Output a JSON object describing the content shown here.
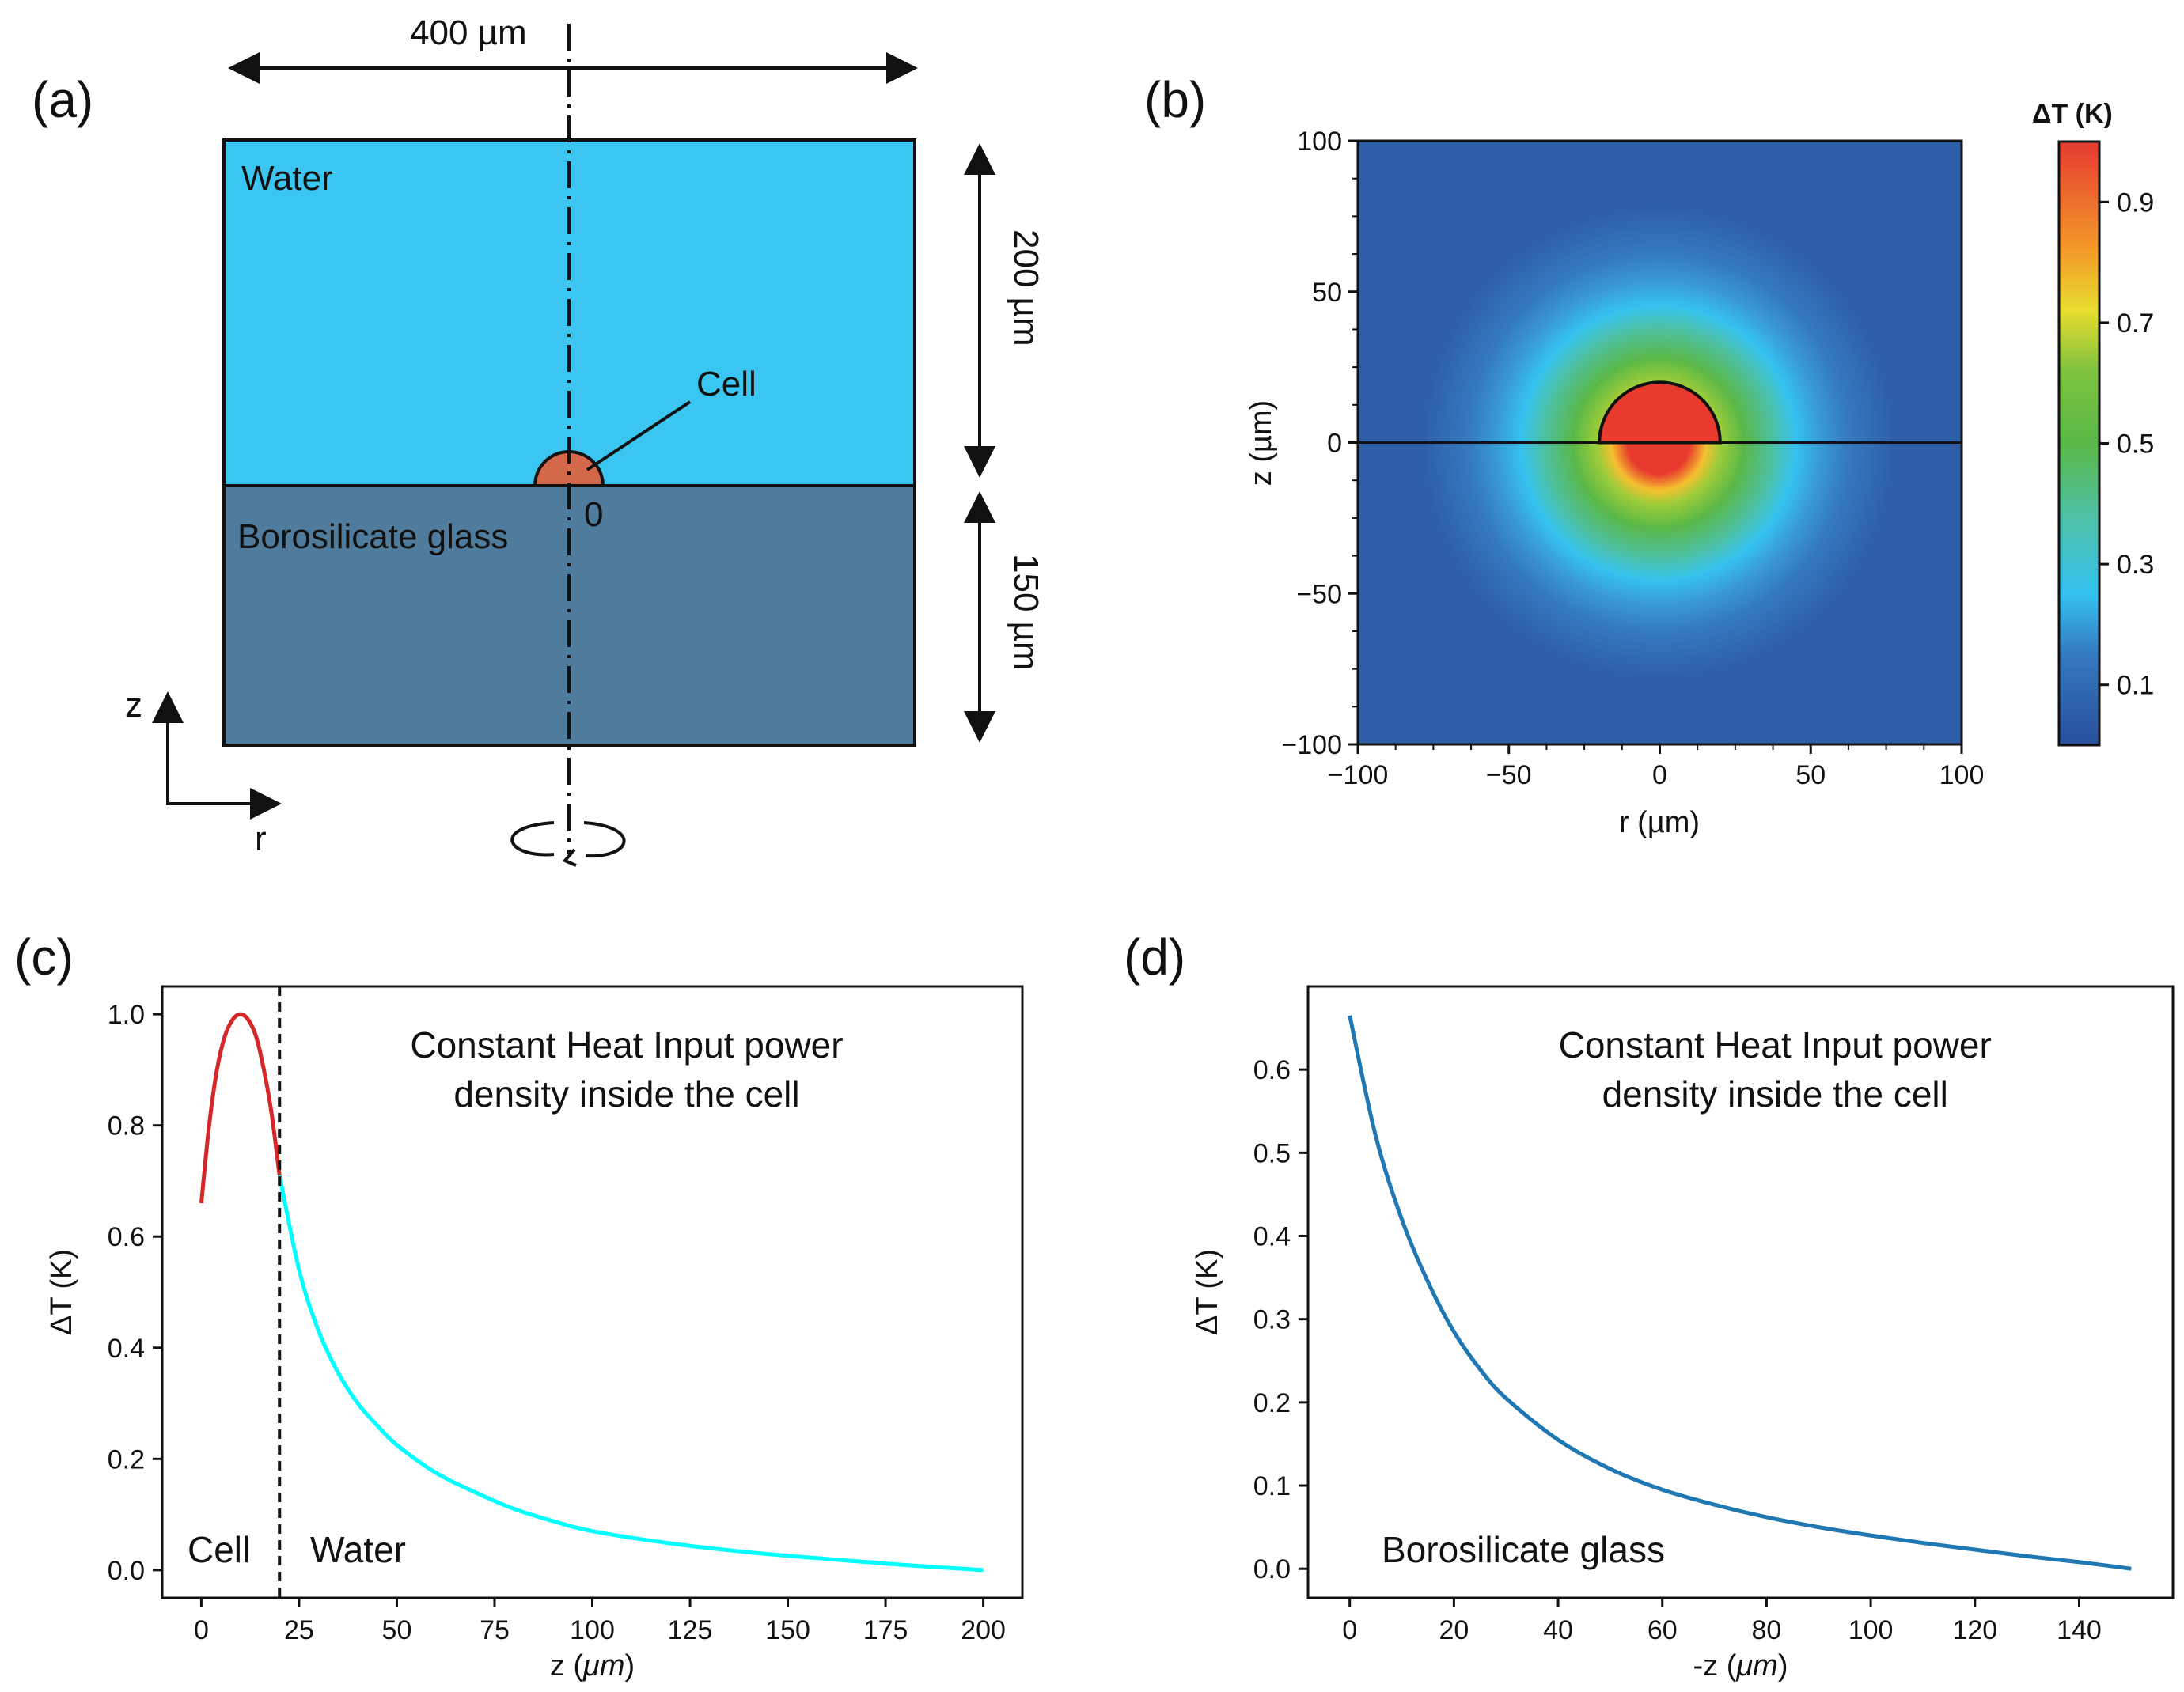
{
  "panel_a": {
    "label": "(a)",
    "width_label": "400 µm",
    "water_label": "Water",
    "glass_label": "Borosilicate glass",
    "cell_label": "Cell",
    "origin_label": "0",
    "water_height_label": "200 µm",
    "glass_height_label": "150 µm",
    "axis_z": "z",
    "axis_r": "r",
    "colors": {
      "water": "#3bc6f2",
      "glass": "#4f7c9c",
      "cell": "#d4684a"
    }
  },
  "panel_b": {
    "label": "(b)",
    "colorbar_title": "ΔT (K)",
    "colorbar_ticks": [
      "0.1",
      "0.3",
      "0.5",
      "0.7",
      "0.9"
    ]
  },
  "panel_c": {
    "label": "(c)"
  },
  "panel_d": {
    "label": "(d)"
  },
  "chart_data": [
    {
      "panel": "b",
      "type": "heatmap",
      "xlabel": "r (µm)",
      "ylabel": "z (µm)",
      "xlim": [
        -100,
        100
      ],
      "ylim": [
        -100,
        100
      ],
      "xticks": [
        -100,
        -50,
        0,
        50,
        100
      ],
      "yticks": [
        -100,
        -50,
        0,
        50,
        100
      ],
      "colorbar_range": [
        0,
        1
      ],
      "cell_radius": 20,
      "interface_z": 0
    },
    {
      "panel": "c",
      "type": "line",
      "title_line1": "Constant Heat Input power",
      "title_line2": "density inside the cell",
      "xlabel_main": "z (",
      "xlabel_unit": "μm",
      "xlabel_end": ")",
      "ylabel": "ΔT (K)",
      "xlim": [
        -10,
        210
      ],
      "ylim": [
        -0.05,
        1.05
      ],
      "xticks": [
        0,
        25,
        50,
        75,
        100,
        125,
        150,
        175,
        200
      ],
      "yticks": [
        0.0,
        0.2,
        0.4,
        0.6,
        0.8,
        1.0
      ],
      "boundary_x": 20,
      "region_labels": [
        "Cell",
        "Water"
      ],
      "series": [
        {
          "name": "Cell",
          "color": "#d62728",
          "x": [
            0,
            2,
            4,
            6,
            8,
            10,
            12,
            14,
            16,
            18,
            20
          ],
          "y": [
            0.66,
            0.8,
            0.9,
            0.96,
            0.99,
            1.0,
            0.99,
            0.96,
            0.9,
            0.82,
            0.71
          ]
        },
        {
          "name": "Water",
          "color": "#00ffff",
          "x": [
            20,
            25,
            30,
            35,
            40,
            45,
            50,
            60,
            70,
            80,
            90,
            100,
            120,
            140,
            160,
            180,
            200
          ],
          "y": [
            0.71,
            0.54,
            0.43,
            0.355,
            0.3,
            0.26,
            0.225,
            0.175,
            0.14,
            0.11,
            0.088,
            0.07,
            0.048,
            0.032,
            0.02,
            0.009,
            0.0
          ]
        }
      ]
    },
    {
      "panel": "d",
      "type": "line",
      "title_line1": "Constant Heat Input power",
      "title_line2": "density inside the cell",
      "xlabel_main": "-z (",
      "xlabel_unit": "μm",
      "xlabel_end": ")",
      "ylabel": "ΔT (K)",
      "xlim": [
        -8,
        158
      ],
      "ylim": [
        -0.035,
        0.7
      ],
      "xticks": [
        0,
        20,
        40,
        60,
        80,
        100,
        120,
        140
      ],
      "yticks": [
        0.0,
        0.1,
        0.2,
        0.3,
        0.4,
        0.5,
        0.6
      ],
      "region_label": "Borosilicate glass",
      "series": [
        {
          "name": "Borosilicate glass",
          "color": "#1f77b4",
          "x": [
            0,
            5,
            10,
            15,
            20,
            25,
            30,
            40,
            50,
            60,
            70,
            80,
            90,
            100,
            110,
            120,
            130,
            140,
            150
          ],
          "y": [
            0.665,
            0.52,
            0.42,
            0.345,
            0.285,
            0.24,
            0.205,
            0.155,
            0.12,
            0.095,
            0.077,
            0.062,
            0.05,
            0.04,
            0.031,
            0.023,
            0.015,
            0.008,
            0.0
          ]
        }
      ]
    }
  ]
}
